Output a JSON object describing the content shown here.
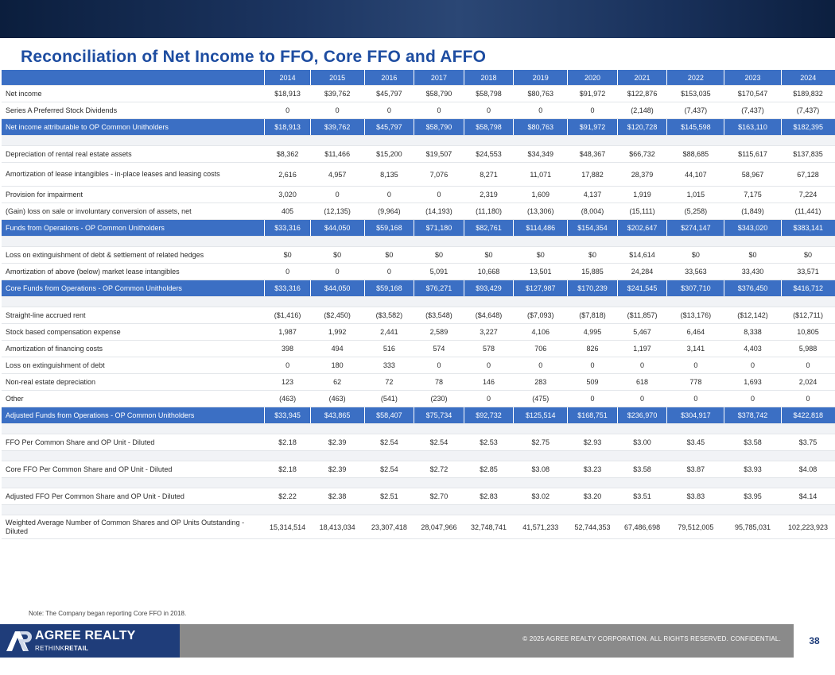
{
  "title": "Reconciliation of Net Income to FFO, Core FFO and AFFO",
  "table": {
    "years": [
      "2014",
      "2015",
      "2016",
      "2017",
      "2018",
      "2019",
      "2020",
      "2021",
      "2022",
      "2023",
      "2024"
    ],
    "rows": [
      {
        "type": "data",
        "label": "Net income",
        "values": [
          "$18,913",
          "$39,762",
          "$45,797",
          "$58,790",
          "$58,798",
          "$80,763",
          "$91,972",
          "$122,876",
          "$153,035",
          "$170,547",
          "$189,832"
        ]
      },
      {
        "type": "data",
        "label": "Series A Preferred Stock Dividends",
        "values": [
          "0",
          "0",
          "0",
          "0",
          "0",
          "0",
          "0",
          "(2,148)",
          "(7,437)",
          "(7,437)",
          "(7,437)"
        ]
      },
      {
        "type": "highlight",
        "label": "Net income attributable to OP Common Unitholders",
        "values": [
          "$18,913",
          "$39,762",
          "$45,797",
          "$58,790",
          "$58,798",
          "$80,763",
          "$91,972",
          "$120,728",
          "$145,598",
          "$163,110",
          "$182,395"
        ]
      },
      {
        "type": "spacer"
      },
      {
        "type": "data",
        "label": "Depreciation of rental real estate assets",
        "values": [
          "$8,362",
          "$11,466",
          "$15,200",
          "$19,507",
          "$24,553",
          "$34,349",
          "$48,367",
          "$66,732",
          "$88,685",
          "$115,617",
          "$137,835"
        ]
      },
      {
        "type": "data",
        "tall": true,
        "label": "Amortization of lease intangibles - in-place leases and leasing costs",
        "values": [
          "2,616",
          "4,957",
          "8,135",
          "7,076",
          "8,271",
          "11,071",
          "17,882",
          "28,379",
          "44,107",
          "58,967",
          "67,128"
        ]
      },
      {
        "type": "data",
        "label": "Provision for impairment",
        "values": [
          "3,020",
          "0",
          "0",
          "0",
          "2,319",
          "1,609",
          "4,137",
          "1,919",
          "1,015",
          "7,175",
          "7,224"
        ]
      },
      {
        "type": "data",
        "label": "(Gain) loss on sale or involuntary conversion of assets, net",
        "values": [
          "405",
          "(12,135)",
          "(9,964)",
          "(14,193)",
          "(11,180)",
          "(13,306)",
          "(8,004)",
          "(15,111)",
          "(5,258)",
          "(1,849)",
          "(11,441)"
        ]
      },
      {
        "type": "highlight",
        "label": "Funds from Operations - OP Common Unitholders",
        "values": [
          "$33,316",
          "$44,050",
          "$59,168",
          "$71,180",
          "$82,761",
          "$114,486",
          "$154,354",
          "$202,647",
          "$274,147",
          "$343,020",
          "$383,141"
        ]
      },
      {
        "type": "spacer"
      },
      {
        "type": "data",
        "label": "Loss on extinguishment of debt & settlement of related hedges",
        "values": [
          "$0",
          "$0",
          "$0",
          "$0",
          "$0",
          "$0",
          "$0",
          "$14,614",
          "$0",
          "$0",
          "$0"
        ]
      },
      {
        "type": "data",
        "label": "Amortization of above (below) market lease intangibles",
        "values": [
          "0",
          "0",
          "0",
          "5,091",
          "10,668",
          "13,501",
          "15,885",
          "24,284",
          "33,563",
          "33,430",
          "33,571"
        ]
      },
      {
        "type": "highlight",
        "label": "Core Funds from Operations - OP Common Unitholders",
        "values": [
          "$33,316",
          "$44,050",
          "$59,168",
          "$76,271",
          "$93,429",
          "$127,987",
          "$170,239",
          "$241,545",
          "$307,710",
          "$376,450",
          "$416,712"
        ]
      },
      {
        "type": "spacer"
      },
      {
        "type": "data",
        "label": "Straight-line accrued rent",
        "values": [
          "($1,416)",
          "($2,450)",
          "($3,582)",
          "($3,548)",
          "($4,648)",
          "($7,093)",
          "($7,818)",
          "($11,857)",
          "($13,176)",
          "($12,142)",
          "($12,711)"
        ]
      },
      {
        "type": "data",
        "label": "Stock based compensation expense",
        "values": [
          "1,987",
          "1,992",
          "2,441",
          "2,589",
          "3,227",
          "4,106",
          "4,995",
          "5,467",
          "6,464",
          "8,338",
          "10,805"
        ]
      },
      {
        "type": "data",
        "label": "Amortization of financing costs",
        "values": [
          "398",
          "494",
          "516",
          "574",
          "578",
          "706",
          "826",
          "1,197",
          "3,141",
          "4,403",
          "5,988"
        ]
      },
      {
        "type": "data",
        "label": "Loss on extinguishment of debt",
        "values": [
          "0",
          "180",
          "333",
          "0",
          "0",
          "0",
          "0",
          "0",
          "0",
          "0",
          "0"
        ]
      },
      {
        "type": "data",
        "label": "Non-real estate depreciation",
        "values": [
          "123",
          "62",
          "72",
          "78",
          "146",
          "283",
          "509",
          "618",
          "778",
          "1,693",
          "2,024"
        ]
      },
      {
        "type": "data",
        "label": "Other",
        "values": [
          "(463)",
          "(463)",
          "(541)",
          "(230)",
          "0",
          "(475)",
          "0",
          "0",
          "0",
          "0",
          "0"
        ]
      },
      {
        "type": "highlight",
        "label": "Adjusted Funds from Operations - OP Common Unitholders",
        "values": [
          "$33,945",
          "$43,865",
          "$58,407",
          "$75,734",
          "$92,732",
          "$125,514",
          "$168,751",
          "$236,970",
          "$304,917",
          "$378,742",
          "$422,818"
        ]
      },
      {
        "type": "spacer"
      },
      {
        "type": "data",
        "label": "FFO Per Common Share and OP Unit - Diluted",
        "values": [
          "$2.18",
          "$2.39",
          "$2.54",
          "$2.54",
          "$2.53",
          "$2.75",
          "$2.93",
          "$3.00",
          "$3.45",
          "$3.58",
          "$3.75"
        ]
      },
      {
        "type": "spacer"
      },
      {
        "type": "data",
        "label": "Core FFO Per Common Share and OP Unit - Diluted",
        "values": [
          "$2.18",
          "$2.39",
          "$2.54",
          "$2.72",
          "$2.85",
          "$3.08",
          "$3.23",
          "$3.58",
          "$3.87",
          "$3.93",
          "$4.08"
        ]
      },
      {
        "type": "spacer"
      },
      {
        "type": "data",
        "label": "Adjusted FFO Per Common Share and OP Unit - Diluted",
        "values": [
          "$2.22",
          "$2.38",
          "$2.51",
          "$2.70",
          "$2.83",
          "$3.02",
          "$3.20",
          "$3.51",
          "$3.83",
          "$3.95",
          "$4.14"
        ]
      },
      {
        "type": "spacer"
      },
      {
        "type": "data",
        "tall": true,
        "label": "Weighted Average Number of Common Shares and OP Units Outstanding - Diluted",
        "values": [
          "15,314,514",
          "18,413,034",
          "23,307,418",
          "28,047,966",
          "32,748,741",
          "41,571,233",
          "52,744,353",
          "67,486,698",
          "79,512,005",
          "95,785,031",
          "102,223,923"
        ]
      }
    ]
  },
  "note": "Note: The Company began reporting Core FFO in 2018.",
  "footer": {
    "logo_name": "AGREE REALTY",
    "logo_tag_light": "RETHINK",
    "logo_tag_bold": "RETAIL",
    "copyright": "© 2025 AGREE REALTY CORPORATION. ALL RIGHTS RESERVED. CONFIDENTIAL.",
    "page_number": "38"
  },
  "colors": {
    "title": "#1e4da1",
    "highlight_row": "#3b6fc4",
    "spacer_row": "#f1f3f6",
    "footer_bar": "#8a8a8a",
    "logo_box": "#1f3d7a"
  },
  "icons": {
    "logo": "agree-realty-logo-icon"
  }
}
